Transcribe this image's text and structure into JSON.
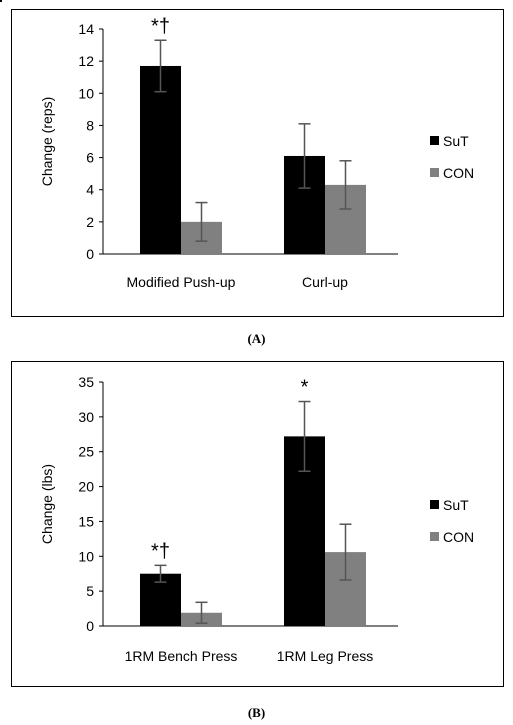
{
  "chart_data": [
    {
      "type": "bar",
      "panel_label": "(A)",
      "ylabel": "Change (reps)",
      "ylim": [
        0,
        14
      ],
      "yticks": [
        0,
        2,
        4,
        6,
        8,
        10,
        12,
        14
      ],
      "grid": false,
      "legend_position": "right",
      "categories": [
        "Modified Push-up",
        "Curl-up"
      ],
      "series": [
        {
          "name": "SuT",
          "color": "#000000",
          "values": [
            11.7,
            6.1
          ],
          "errors": [
            1.6,
            2.0
          ]
        },
        {
          "name": "CON",
          "color": "#808080",
          "values": [
            2.0,
            4.3
          ],
          "errors": [
            1.2,
            1.5
          ]
        }
      ],
      "annotations": [
        {
          "category": "Modified Push-up",
          "series": "SuT",
          "text": "*†"
        }
      ]
    },
    {
      "type": "bar",
      "panel_label": "(B)",
      "ylabel": "Change (lbs)",
      "ylim": [
        0,
        35
      ],
      "yticks": [
        0,
        5,
        10,
        15,
        20,
        25,
        30,
        35
      ],
      "grid": false,
      "legend_position": "right",
      "categories": [
        "1RM Bench Press",
        "1RM Leg Press"
      ],
      "series": [
        {
          "name": "SuT",
          "color": "#000000",
          "values": [
            7.5,
            27.2
          ],
          "errors": [
            1.2,
            5.0
          ]
        },
        {
          "name": "CON",
          "color": "#808080",
          "values": [
            1.9,
            10.6
          ],
          "errors": [
            1.5,
            4.0
          ]
        }
      ],
      "annotations": [
        {
          "category": "1RM Bench Press",
          "series": "SuT",
          "text": "*†"
        },
        {
          "category": "1RM Leg Press",
          "series": "SuT",
          "text": "*"
        }
      ]
    }
  ]
}
